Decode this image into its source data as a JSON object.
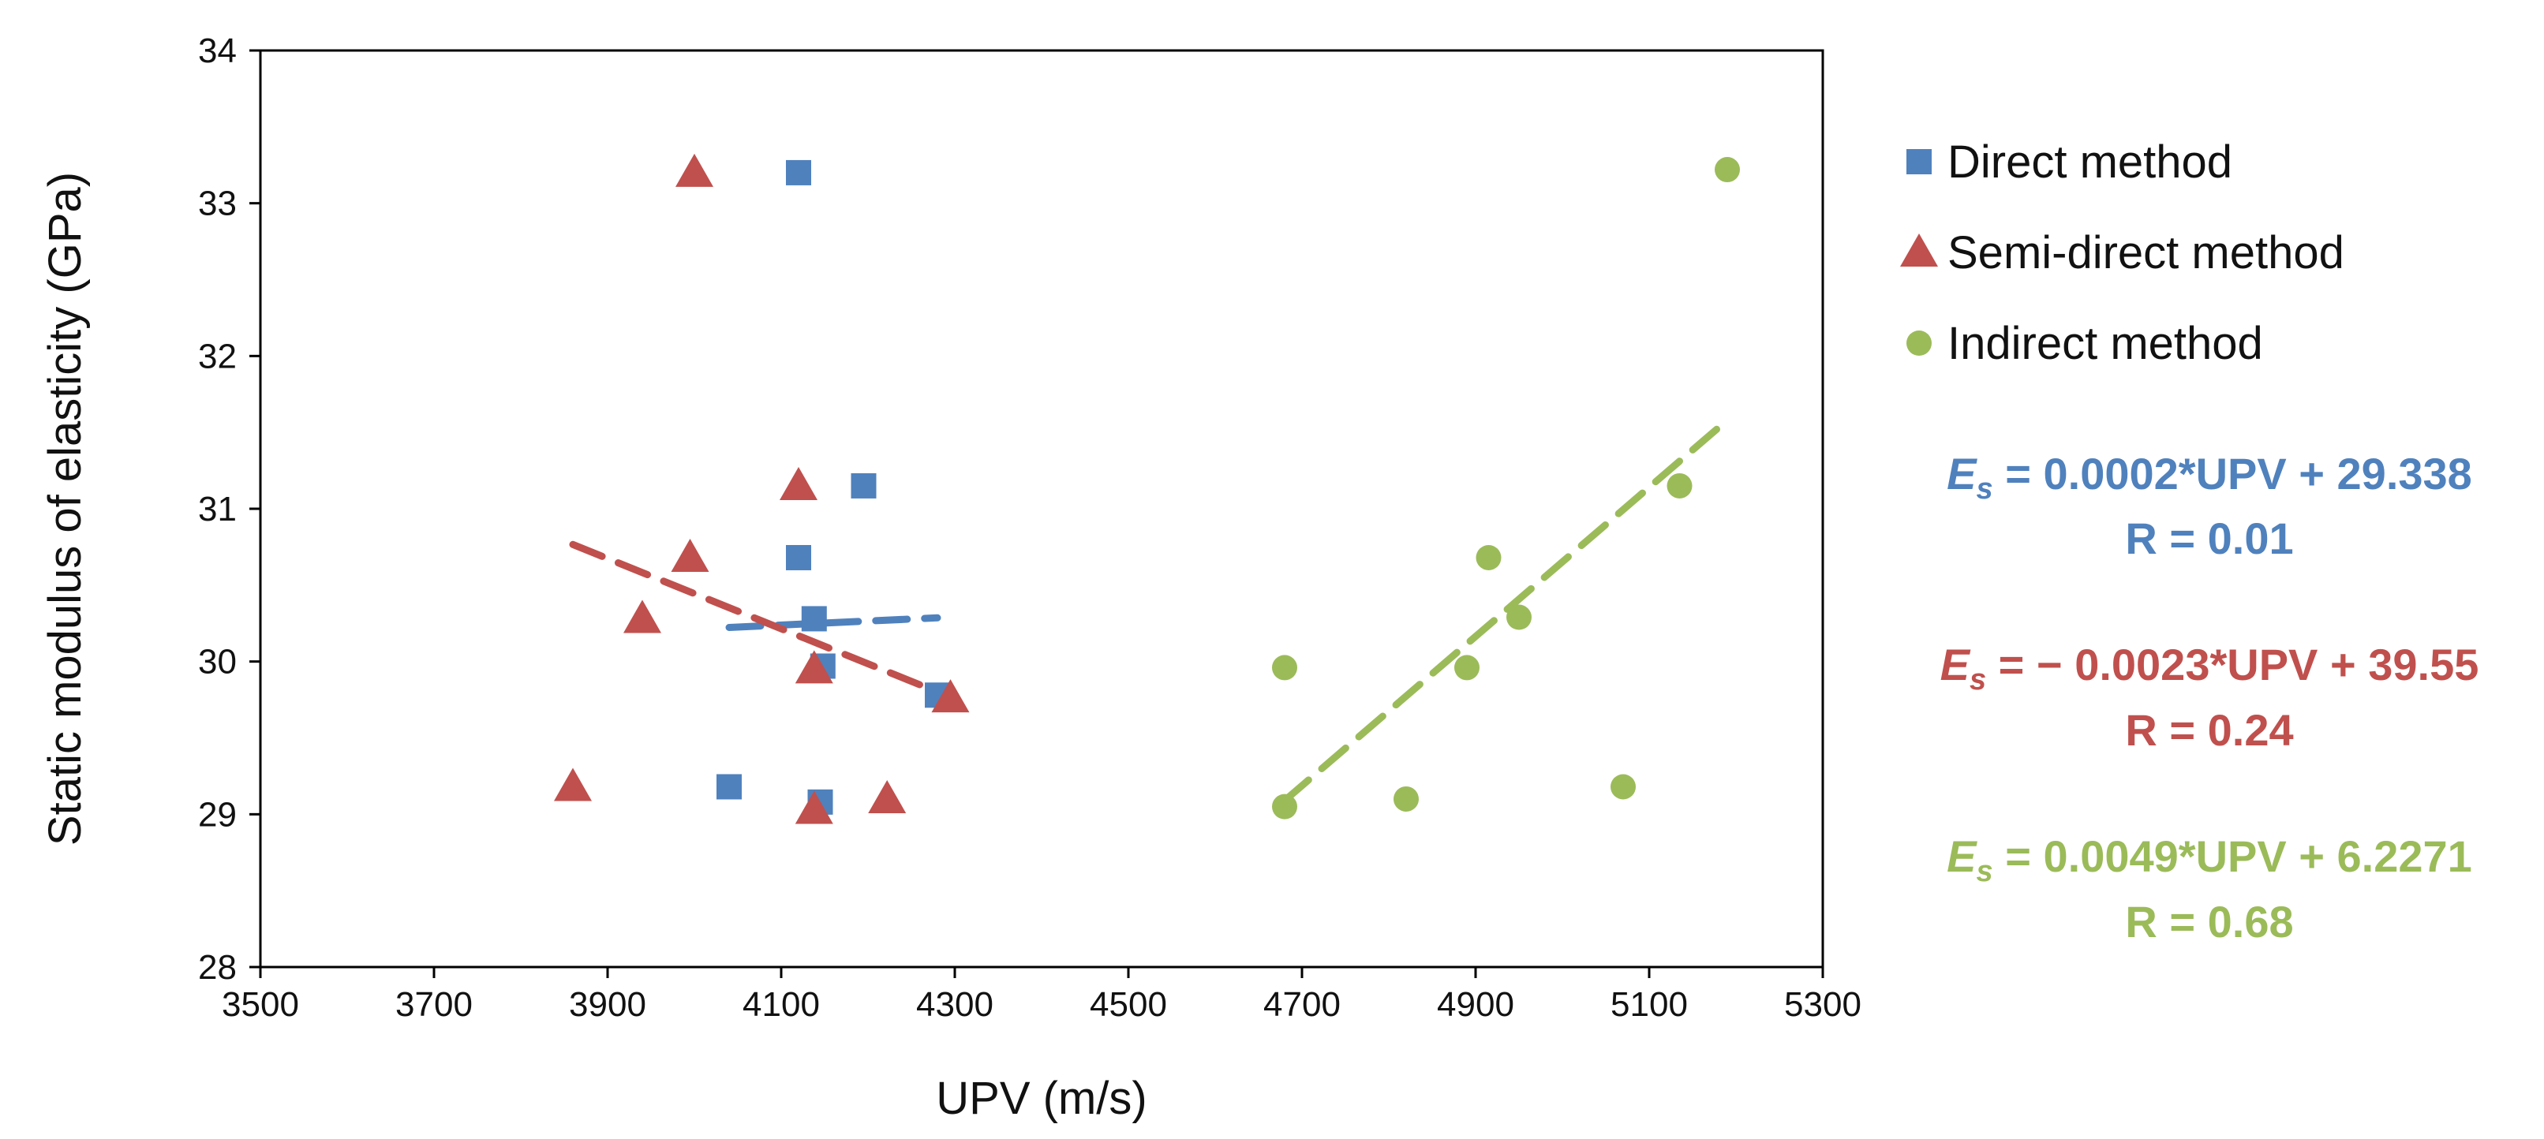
{
  "chart_data": {
    "type": "scatter",
    "title": "",
    "xlabel": "UPV (m/s)",
    "ylabel": "Static modulus of elasticity (GPa)",
    "xlim": [
      3500,
      5300
    ],
    "ylim": [
      28,
      34
    ],
    "x_ticks": [
      "3500",
      "3700",
      "3900",
      "4100",
      "4300",
      "4500",
      "4700",
      "4900",
      "5100",
      "5300"
    ],
    "y_ticks": [
      "28",
      "29",
      "30",
      "31",
      "32",
      "33",
      "34"
    ],
    "legend_position": "right",
    "series": [
      {
        "name": "Direct method",
        "marker": "square",
        "color": "#4F81BD",
        "points": [
          [
            4120,
            33.2
          ],
          [
            4195,
            31.15
          ],
          [
            4120,
            30.68
          ],
          [
            4138,
            30.28
          ],
          [
            4148,
            29.97
          ],
          [
            4280,
            29.78
          ],
          [
            4040,
            29.18
          ],
          [
            4145,
            29.08
          ]
        ],
        "trendline": {
          "x": [
            4040,
            4280
          ],
          "y": [
            30.223,
            30.286
          ]
        },
        "equation": {
          "var": "E",
          "sub": "s",
          "rest": " = 0.0002*UPV + 29.338",
          "r": "R = 0.01"
        }
      },
      {
        "name": "Semi-direct method",
        "marker": "triangle",
        "color": "#C0504D",
        "points": [
          [
            4000,
            33.2
          ],
          [
            4120,
            31.15
          ],
          [
            3995,
            30.68
          ],
          [
            3940,
            30.28
          ],
          [
            4138,
            29.95
          ],
          [
            4295,
            29.76
          ],
          [
            3860,
            29.18
          ],
          [
            4138,
            29.03
          ],
          [
            4222,
            29.1
          ]
        ],
        "trendline": {
          "x": [
            3860,
            4295
          ],
          "y": [
            30.766,
            29.767
          ]
        },
        "equation": {
          "var": "E",
          "sub": "s",
          "rest": " = − 0.0023*UPV + 39.55",
          "r": "R = 0.24"
        }
      },
      {
        "name": "Indirect method",
        "marker": "circle",
        "color": "#9BBB59",
        "points": [
          [
            5190,
            33.22
          ],
          [
            5135,
            31.15
          ],
          [
            4915,
            30.68
          ],
          [
            4950,
            30.29
          ],
          [
            4680,
            29.96
          ],
          [
            4890,
            29.96
          ],
          [
            4820,
            29.1
          ],
          [
            4680,
            29.05
          ],
          [
            5070,
            29.18
          ]
        ],
        "trendline": {
          "x": [
            4680,
            5190
          ],
          "y": [
            29.09,
            31.58
          ]
        },
        "equation": {
          "var": "E",
          "sub": "s",
          "rest": " = 0.0049*UPV + 6.2271",
          "r": "R = 0.68"
        }
      }
    ]
  }
}
